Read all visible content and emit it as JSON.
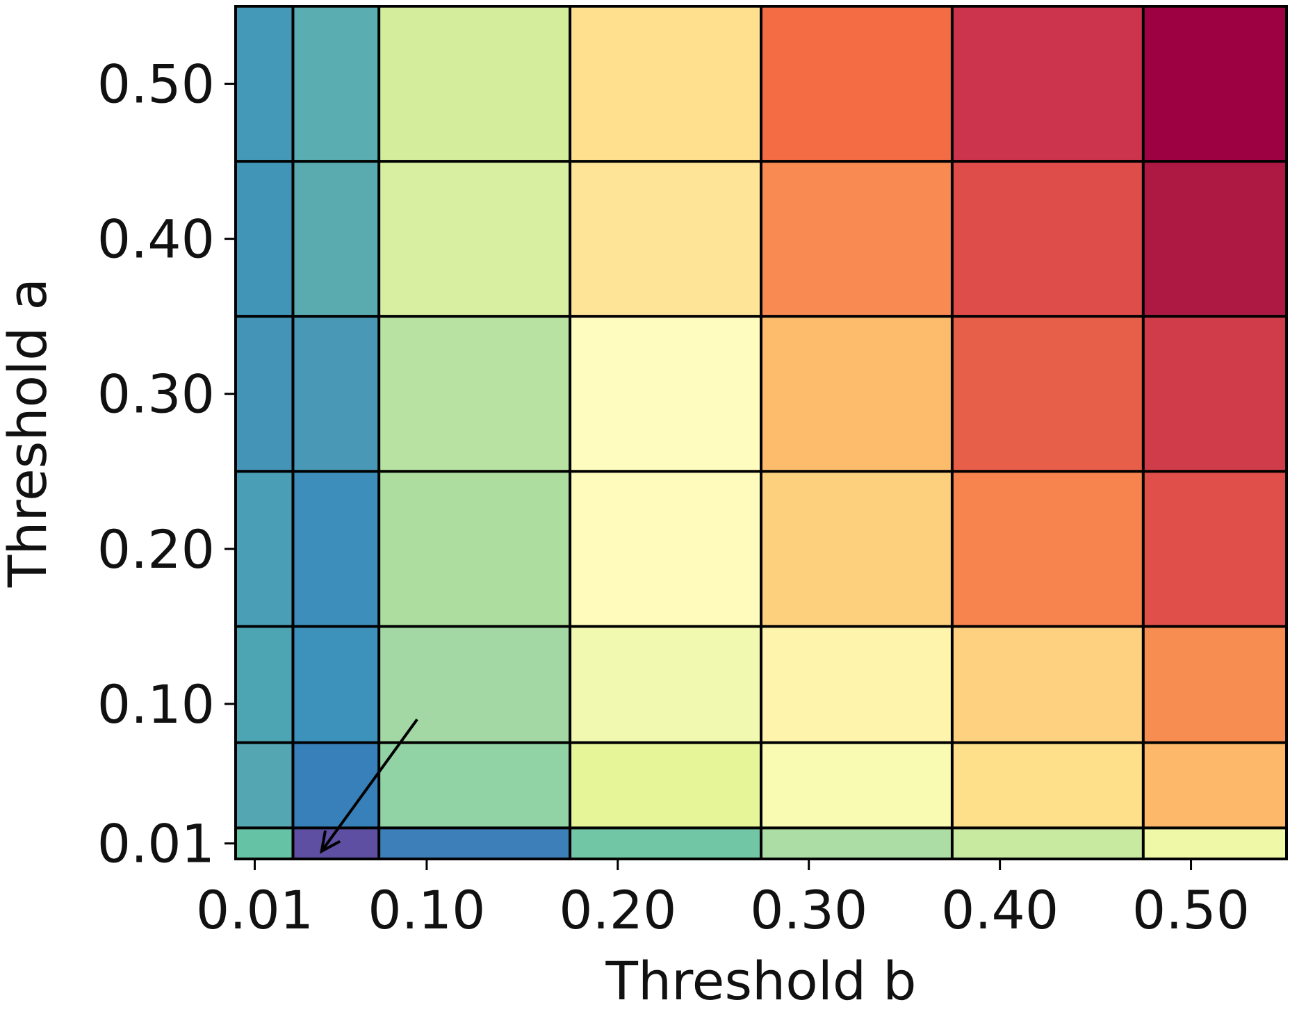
{
  "chart_data": {
    "type": "heatmap",
    "xlabel": "Threshold b",
    "ylabel": "Threshold a",
    "x_edges": [
      0.0,
      0.03,
      0.075,
      0.175,
      0.275,
      0.375,
      0.475,
      0.55
    ],
    "y_edges": [
      0.0,
      0.02,
      0.075,
      0.15,
      0.25,
      0.35,
      0.45,
      0.55
    ],
    "x_ticks": [
      0.01,
      0.1,
      0.2,
      0.3,
      0.4,
      0.5
    ],
    "x_tick_labels": [
      "0.01",
      "0.10",
      "0.20",
      "0.30",
      "0.40",
      "0.50"
    ],
    "y_ticks": [
      0.01,
      0.1,
      0.2,
      0.3,
      0.4,
      0.5
    ],
    "y_tick_labels": [
      "0.01",
      "0.10",
      "0.20",
      "0.30",
      "0.40",
      "0.50"
    ],
    "colormap": "Spectral_r",
    "rows_bottom_to_top": [
      [
        "#66c2a5",
        "#5e4fa2",
        "#3d7fb9",
        "#71c6a5",
        "#abdda4",
        "#c8e9a0",
        "#eef8a6"
      ],
      [
        "#53a6b2",
        "#3880ba",
        "#91d3a4",
        "#e6f597",
        "#f9fbb3",
        "#fee08b",
        "#fdb869"
      ],
      [
        "#4da4b2",
        "#3d92bb",
        "#a3d8a4",
        "#f1f8b0",
        "#fef4ab",
        "#fdd180",
        "#f88d52"
      ],
      [
        "#4a9fb6",
        "#3d8ebb",
        "#addea0",
        "#fefbbd",
        "#fdd07e",
        "#f7844e",
        "#e04f4a"
      ],
      [
        "#4394b7",
        "#4998b5",
        "#b8e2a1",
        "#fefcbf",
        "#fdbb6c",
        "#e85f49",
        "#d13c4b"
      ],
      [
        "#4195b7",
        "#5aabb0",
        "#d8efa1",
        "#fee497",
        "#f88a52",
        "#df4d4a",
        "#ae1944"
      ],
      [
        "#4399b7",
        "#5aadb0",
        "#d3ed9d",
        "#fee08f",
        "#f36c44",
        "#cb344c",
        "#9e0142"
      ]
    ],
    "annotation": {
      "type": "arrow",
      "from": [
        0.095,
        0.09
      ],
      "to": [
        0.045,
        0.005
      ]
    },
    "grid": true,
    "legend": "none"
  }
}
